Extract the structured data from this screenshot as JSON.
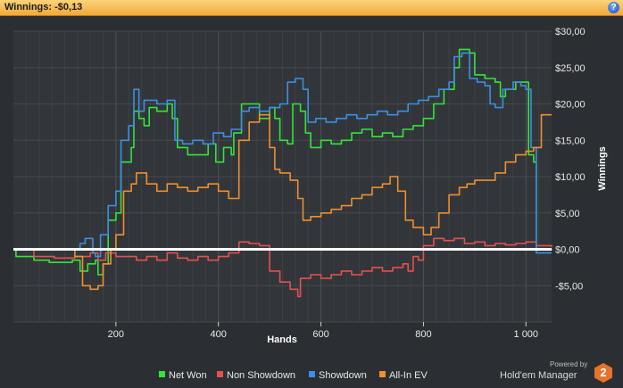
{
  "header": {
    "title": "Winnings: -$0,13",
    "help_label": "?"
  },
  "branding": {
    "powered": "Powered by",
    "name": "Hold'em Manager",
    "version": "2"
  },
  "colors": {
    "net_won": "#35e33a",
    "non_showdown": "#e5504f",
    "showdown": "#3d8fe0",
    "allin_ev": "#ef8f2f",
    "zero_line": "#ffffff"
  },
  "chart_data": {
    "type": "line",
    "xlabel": "Hands",
    "ylabel": "Winnings",
    "xlim": [
      0,
      1050
    ],
    "ylim": [
      -10,
      30
    ],
    "x_ticks": [
      {
        "v": 200,
        "label": "200"
      },
      {
        "v": 400,
        "label": "400"
      },
      {
        "v": 600,
        "label": "600"
      },
      {
        "v": 800,
        "label": "800"
      },
      {
        "v": 1000,
        "label": "1 000"
      }
    ],
    "y_ticks": [
      {
        "v": 30,
        "label": "$30,00"
      },
      {
        "v": 25,
        "label": "$25,00"
      },
      {
        "v": 20,
        "label": "$20,00"
      },
      {
        "v": 15,
        "label": "$15,00"
      },
      {
        "v": 10,
        "label": "$10,00"
      },
      {
        "v": 5,
        "label": "$5,00"
      },
      {
        "v": 0,
        "label": "$0,00"
      },
      {
        "v": -5,
        "label": "-$5,00"
      }
    ],
    "grid": true,
    "legend_position": "bottom",
    "series": [
      {
        "name": "Net Won",
        "key": "net_won",
        "points": [
          [
            0,
            0
          ],
          [
            5,
            -1
          ],
          [
            40,
            -1.5
          ],
          [
            70,
            -1.8
          ],
          [
            115,
            -1.5
          ],
          [
            130,
            -3
          ],
          [
            145,
            -2
          ],
          [
            160,
            -1.5
          ],
          [
            165,
            -3.5
          ],
          [
            175,
            -2
          ],
          [
            185,
            4
          ],
          [
            200,
            5
          ],
          [
            210,
            12
          ],
          [
            230,
            14
          ],
          [
            235,
            19
          ],
          [
            245,
            18
          ],
          [
            255,
            17
          ],
          [
            265,
            19.5
          ],
          [
            280,
            19
          ],
          [
            300,
            20
          ],
          [
            310,
            18
          ],
          [
            320,
            14
          ],
          [
            340,
            13
          ],
          [
            360,
            13
          ],
          [
            380,
            14.5
          ],
          [
            395,
            12
          ],
          [
            410,
            14
          ],
          [
            425,
            13
          ],
          [
            430,
            16
          ],
          [
            445,
            20
          ],
          [
            460,
            20
          ],
          [
            480,
            18
          ],
          [
            500,
            19.5
          ],
          [
            510,
            18
          ],
          [
            520,
            15
          ],
          [
            535,
            14.5
          ],
          [
            545,
            20
          ],
          [
            560,
            19
          ],
          [
            570,
            16
          ],
          [
            580,
            14
          ],
          [
            600,
            15
          ],
          [
            620,
            14.5
          ],
          [
            640,
            15
          ],
          [
            660,
            16
          ],
          [
            680,
            16.5
          ],
          [
            700,
            15.5
          ],
          [
            720,
            16
          ],
          [
            740,
            15.5
          ],
          [
            760,
            16.5
          ],
          [
            780,
            17
          ],
          [
            800,
            18
          ],
          [
            820,
            20
          ],
          [
            840,
            22
          ],
          [
            860,
            25
          ],
          [
            870,
            27.5
          ],
          [
            890,
            27
          ],
          [
            900,
            24
          ],
          [
            920,
            23.5
          ],
          [
            940,
            23
          ],
          [
            950,
            21
          ],
          [
            960,
            22
          ],
          [
            980,
            23
          ],
          [
            1000,
            23
          ],
          [
            1005,
            13
          ],
          [
            1015,
            12
          ],
          [
            1020,
            0
          ],
          [
            1050,
            -0.13
          ]
        ]
      },
      {
        "name": "Non Showdown",
        "key": "non_showdown",
        "points": [
          [
            0,
            0
          ],
          [
            40,
            -1
          ],
          [
            80,
            -1.2
          ],
          [
            120,
            -1
          ],
          [
            150,
            -0.5
          ],
          [
            165,
            -1.5
          ],
          [
            180,
            -0.5
          ],
          [
            200,
            -1
          ],
          [
            220,
            -1
          ],
          [
            240,
            -1.5
          ],
          [
            260,
            -1
          ],
          [
            280,
            -1.5
          ],
          [
            300,
            -0.5
          ],
          [
            320,
            -1.2
          ],
          [
            340,
            -1.5
          ],
          [
            360,
            -1
          ],
          [
            380,
            -1.5
          ],
          [
            400,
            -1
          ],
          [
            420,
            -0.5
          ],
          [
            440,
            1
          ],
          [
            460,
            0.8
          ],
          [
            480,
            0.5
          ],
          [
            500,
            -3
          ],
          [
            520,
            -4.5
          ],
          [
            540,
            -5.5
          ],
          [
            555,
            -6.5
          ],
          [
            560,
            -4
          ],
          [
            580,
            -3.5
          ],
          [
            600,
            -4
          ],
          [
            620,
            -3.5
          ],
          [
            640,
            -3
          ],
          [
            660,
            -3.5
          ],
          [
            680,
            -3
          ],
          [
            700,
            -2.5
          ],
          [
            720,
            -3
          ],
          [
            740,
            -2.5
          ],
          [
            760,
            -2
          ],
          [
            770,
            -3
          ],
          [
            780,
            -1
          ],
          [
            790,
            -1.5
          ],
          [
            800,
            0.5
          ],
          [
            820,
            1.5
          ],
          [
            840,
            1.2
          ],
          [
            860,
            1.5
          ],
          [
            880,
            0.8
          ],
          [
            900,
            1
          ],
          [
            920,
            0.5
          ],
          [
            940,
            0.8
          ],
          [
            960,
            0.6
          ],
          [
            980,
            0.8
          ],
          [
            1000,
            1
          ],
          [
            1020,
            0.5
          ],
          [
            1050,
            0.3
          ]
        ]
      },
      {
        "name": "Showdown",
        "key": "showdown",
        "points": [
          [
            0,
            0
          ],
          [
            120,
            0
          ],
          [
            130,
            0.8
          ],
          [
            140,
            1.5
          ],
          [
            155,
            -0.5
          ],
          [
            160,
            -1
          ],
          [
            170,
            2
          ],
          [
            185,
            6
          ],
          [
            200,
            8
          ],
          [
            210,
            15
          ],
          [
            225,
            17
          ],
          [
            235,
            22
          ],
          [
            245,
            19
          ],
          [
            255,
            20.5
          ],
          [
            280,
            20
          ],
          [
            300,
            20.5
          ],
          [
            315,
            15
          ],
          [
            330,
            14.5
          ],
          [
            350,
            15
          ],
          [
            370,
            14.5
          ],
          [
            390,
            16
          ],
          [
            410,
            15.5
          ],
          [
            425,
            16.5
          ],
          [
            445,
            19
          ],
          [
            460,
            19.5
          ],
          [
            480,
            19
          ],
          [
            500,
            19.5
          ],
          [
            520,
            20
          ],
          [
            535,
            23
          ],
          [
            550,
            23.5
          ],
          [
            565,
            22
          ],
          [
            575,
            17.5
          ],
          [
            590,
            18
          ],
          [
            610,
            17.5
          ],
          [
            630,
            18
          ],
          [
            650,
            18.5
          ],
          [
            670,
            18
          ],
          [
            690,
            18.5
          ],
          [
            710,
            19
          ],
          [
            730,
            18.5
          ],
          [
            750,
            19
          ],
          [
            770,
            20
          ],
          [
            790,
            20.5
          ],
          [
            810,
            21
          ],
          [
            830,
            22
          ],
          [
            850,
            23
          ],
          [
            860,
            26.5
          ],
          [
            875,
            27
          ],
          [
            890,
            23.5
          ],
          [
            905,
            23
          ],
          [
            920,
            22.5
          ],
          [
            930,
            20
          ],
          [
            940,
            19.5
          ],
          [
            955,
            22
          ],
          [
            975,
            23
          ],
          [
            990,
            22.5
          ],
          [
            1000,
            22
          ],
          [
            1010,
            14
          ],
          [
            1020,
            -0.5
          ],
          [
            1050,
            -0.5
          ]
        ]
      },
      {
        "name": "All-In EV",
        "key": "allin_ev",
        "points": [
          [
            0,
            0
          ],
          [
            120,
            -1
          ],
          [
            135,
            -5
          ],
          [
            150,
            -5.5
          ],
          [
            165,
            -5
          ],
          [
            175,
            -2
          ],
          [
            190,
            0
          ],
          [
            200,
            2
          ],
          [
            215,
            8
          ],
          [
            230,
            9
          ],
          [
            240,
            10.5
          ],
          [
            260,
            9
          ],
          [
            280,
            8
          ],
          [
            300,
            9
          ],
          [
            320,
            8.5
          ],
          [
            340,
            8
          ],
          [
            360,
            8.5
          ],
          [
            380,
            9
          ],
          [
            400,
            8
          ],
          [
            420,
            7
          ],
          [
            440,
            15
          ],
          [
            460,
            17.5
          ],
          [
            480,
            18.5
          ],
          [
            500,
            14
          ],
          [
            510,
            11
          ],
          [
            520,
            10.5
          ],
          [
            540,
            9.5
          ],
          [
            555,
            7
          ],
          [
            565,
            4
          ],
          [
            580,
            4.5
          ],
          [
            600,
            5
          ],
          [
            620,
            5.5
          ],
          [
            640,
            6
          ],
          [
            660,
            7
          ],
          [
            680,
            7.5
          ],
          [
            700,
            8.5
          ],
          [
            720,
            9
          ],
          [
            735,
            10
          ],
          [
            750,
            8
          ],
          [
            765,
            4
          ],
          [
            780,
            3
          ],
          [
            800,
            2
          ],
          [
            815,
            3
          ],
          [
            830,
            5
          ],
          [
            850,
            7.5
          ],
          [
            870,
            8.5
          ],
          [
            885,
            9
          ],
          [
            900,
            9.5
          ],
          [
            920,
            9.5
          ],
          [
            940,
            10.5
          ],
          [
            960,
            12
          ],
          [
            980,
            13
          ],
          [
            1000,
            13.5
          ],
          [
            1015,
            14
          ],
          [
            1030,
            18.5
          ],
          [
            1050,
            18.5
          ]
        ]
      }
    ]
  }
}
